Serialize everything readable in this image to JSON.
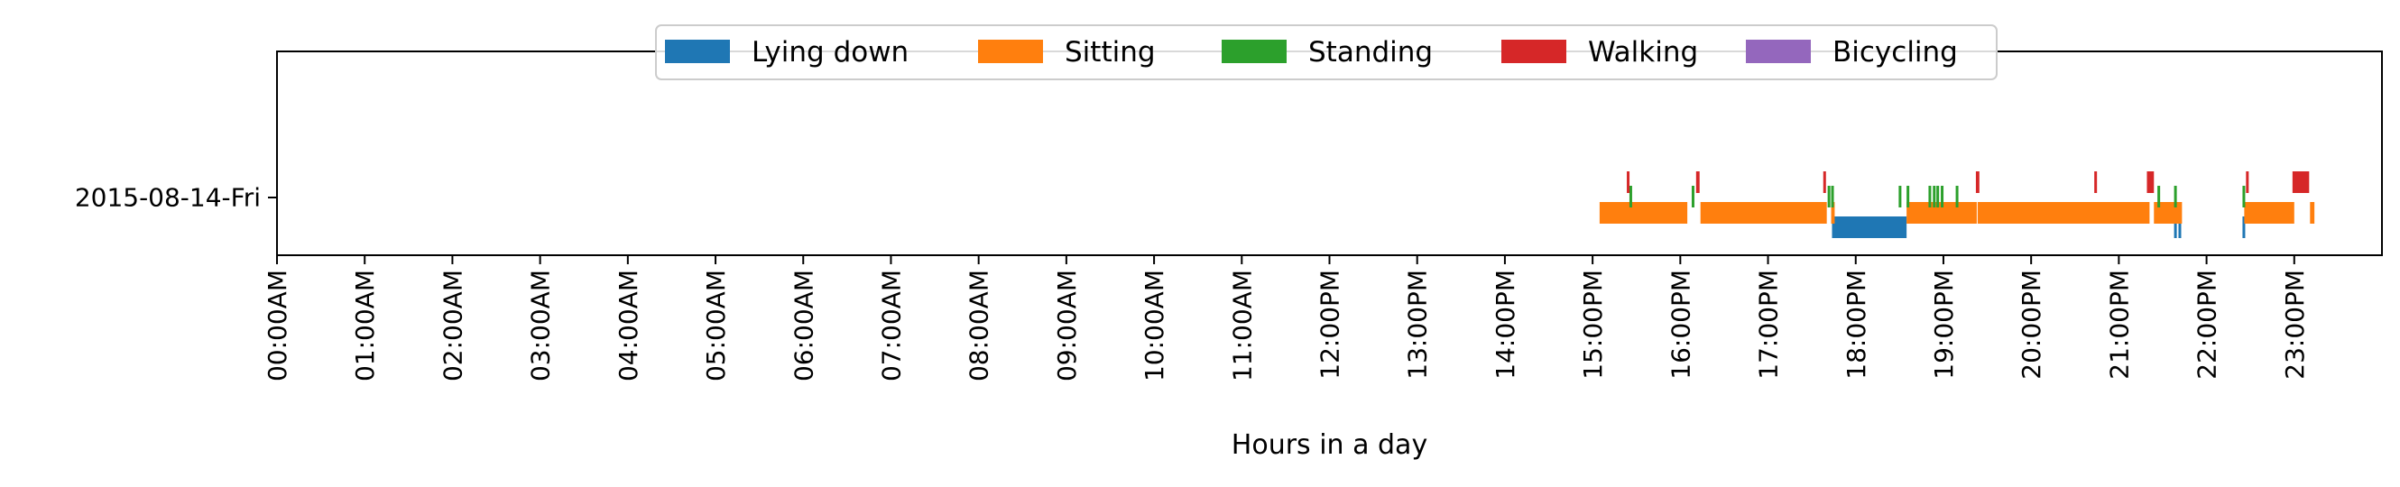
{
  "chart_data": {
    "type": "timeline",
    "title": "",
    "xlabel": "Hours in a day",
    "ylabel": "",
    "xlim": [
      0,
      24
    ],
    "row_label": "2015-08-14-Fri",
    "grid": false,
    "legend_placement": "top-center",
    "x_ticks": [
      "00:00AM",
      "01:00AM",
      "02:00AM",
      "03:00AM",
      "04:00AM",
      "05:00AM",
      "06:00AM",
      "07:00AM",
      "08:00AM",
      "09:00AM",
      "10:00AM",
      "11:00AM",
      "12:00PM",
      "13:00PM",
      "14:00PM",
      "15:00PM",
      "16:00PM",
      "17:00PM",
      "18:00PM",
      "19:00PM",
      "20:00PM",
      "21:00PM",
      "22:00PM",
      "23:00PM"
    ],
    "series": [
      {
        "name": "Lying down",
        "color": "#1f77b4",
        "lane": 0,
        "segments": [
          [
            17.73,
            18.58
          ],
          [
            21.63,
            21.66
          ],
          [
            21.68,
            21.71
          ],
          [
            22.41,
            22.43
          ]
        ]
      },
      {
        "name": "Sitting",
        "color": "#ff7f0e",
        "lane": 1,
        "segments": [
          [
            15.08,
            16.08
          ],
          [
            16.23,
            17.67
          ],
          [
            17.72,
            17.76
          ],
          [
            18.58,
            19.38
          ],
          [
            19.39,
            21.35
          ],
          [
            21.4,
            21.72
          ],
          [
            22.43,
            23.0
          ],
          [
            23.18,
            23.23
          ]
        ]
      },
      {
        "name": "Standing",
        "color": "#2ca02c",
        "lane": 2,
        "segments": [
          [
            15.42,
            15.44
          ],
          [
            16.13,
            16.15
          ],
          [
            17.68,
            17.71
          ],
          [
            17.72,
            17.73
          ],
          [
            18.49,
            18.51
          ],
          [
            18.58,
            18.6
          ],
          [
            18.83,
            18.85
          ],
          [
            18.88,
            18.9
          ],
          [
            18.92,
            18.94
          ],
          [
            18.97,
            18.99
          ],
          [
            19.14,
            19.16
          ],
          [
            21.44,
            21.46
          ],
          [
            21.63,
            21.65
          ],
          [
            22.41,
            22.43
          ]
        ]
      },
      {
        "name": "Walking",
        "color": "#d62728",
        "lane": 3,
        "segments": [
          [
            15.39,
            15.41
          ],
          [
            16.18,
            16.22
          ],
          [
            17.63,
            17.66
          ],
          [
            19.37,
            19.41
          ],
          [
            20.72,
            20.74
          ],
          [
            21.32,
            21.4
          ],
          [
            22.45,
            22.47
          ],
          [
            22.98,
            23.17
          ]
        ]
      },
      {
        "name": "Bicycling",
        "color": "#9467bd",
        "lane": 4,
        "segments": []
      }
    ]
  }
}
